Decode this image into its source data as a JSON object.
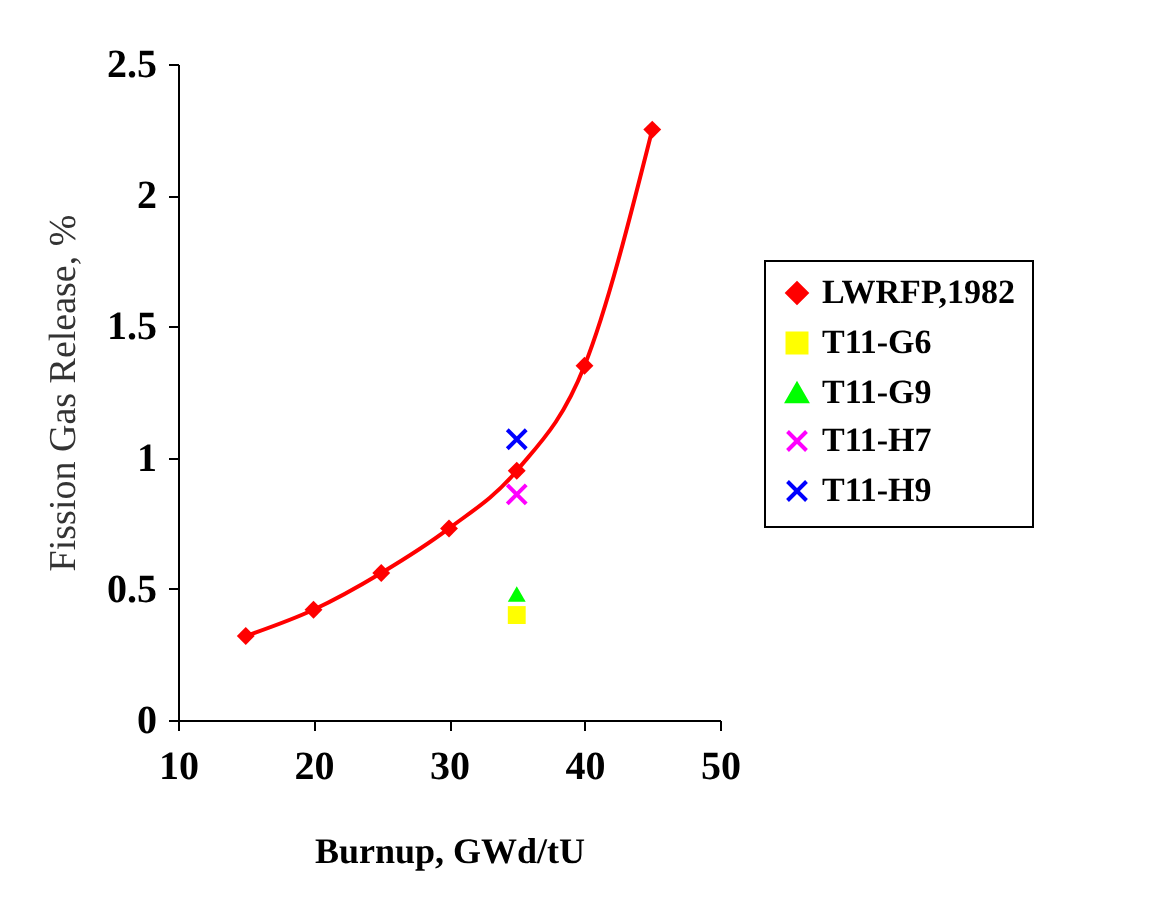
{
  "chart_data": {
    "type": "line",
    "xlabel": "Burnup, GWd/tU",
    "ylabel": "Fission Gas Release, %",
    "xlim": [
      10,
      50
    ],
    "xticks": [
      10,
      20,
      30,
      40,
      50
    ],
    "ylim": [
      0,
      2.5
    ],
    "yticks": [
      0,
      0.5,
      1,
      1.5,
      2,
      2.5
    ],
    "grid": false,
    "legend": "right",
    "series": [
      {
        "name": "LWRFP,1982",
        "marker": "diamond",
        "color": "#ff0000",
        "x": [
          15,
          20,
          25,
          30,
          35,
          40,
          45
        ],
        "values": [
          0.32,
          0.42,
          0.56,
          0.73,
          0.95,
          1.35,
          2.25
        ]
      },
      {
        "name": "T11-G6",
        "type": "scatter",
        "marker": "square",
        "color": "#ffff00",
        "x": [
          35
        ],
        "values": [
          0.4
        ]
      },
      {
        "name": "T11-G9",
        "type": "scatter",
        "marker": "triangle",
        "color": "#00ff00",
        "x": [
          35
        ],
        "values": [
          0.48
        ]
      },
      {
        "name": "T11-H7",
        "type": "scatter",
        "marker": "cross",
        "color": "#ff00ff",
        "x": [
          35
        ],
        "values": [
          0.86
        ]
      },
      {
        "name": "T11-H9",
        "type": "scatter",
        "marker": "cross",
        "color": "#0000ff",
        "x": [
          35
        ],
        "values": [
          1.07
        ]
      }
    ]
  }
}
